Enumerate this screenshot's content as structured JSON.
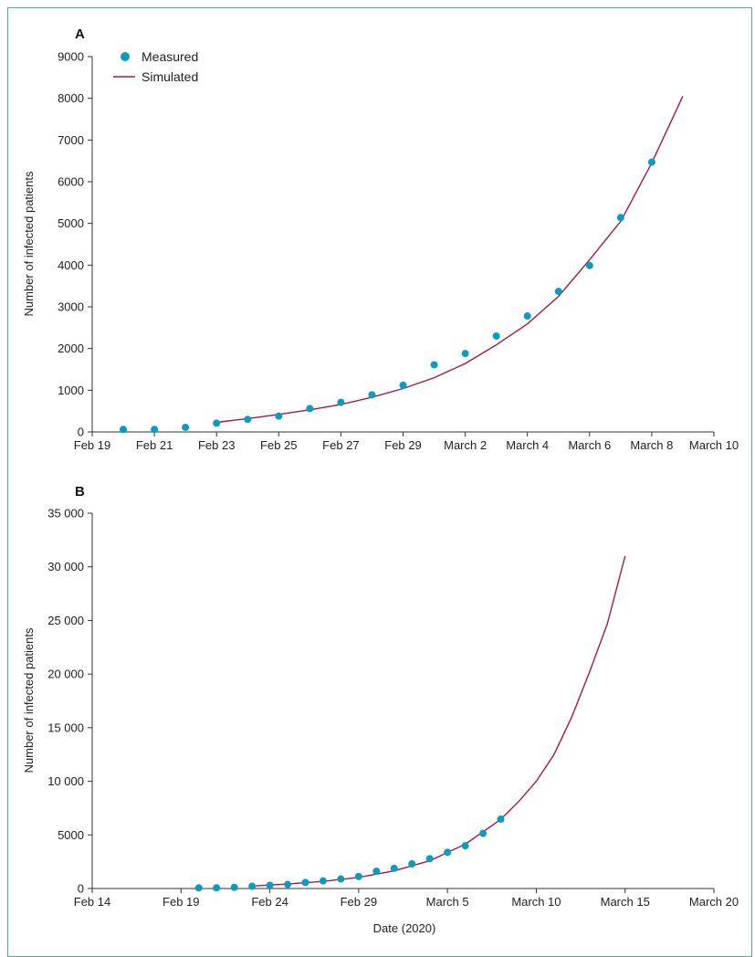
{
  "colors": {
    "measured": "#0a9cc0",
    "simulated": "#a8164b",
    "axis": "#333333",
    "frame": "#5aa79a"
  },
  "chart_data": [
    {
      "panel": "A",
      "type": "scatter",
      "xlabel": "",
      "ylabel": "Number of infected patients",
      "ylim": [
        0,
        9000
      ],
      "yticks": [
        0,
        1000,
        2000,
        3000,
        4000,
        5000,
        6000,
        7000,
        8000,
        9000
      ],
      "ytick_labels": [
        "0",
        "1000",
        "2000",
        "3000",
        "4000",
        "5000",
        "6000",
        "7000",
        "8000",
        "9000"
      ],
      "xlim": [
        "2020-02-19",
        "2020-03-10"
      ],
      "xticks": [
        "2020-02-19",
        "2020-02-21",
        "2020-02-23",
        "2020-02-25",
        "2020-02-27",
        "2020-02-29",
        "2020-03-02",
        "2020-03-04",
        "2020-03-06",
        "2020-03-08",
        "2020-03-10"
      ],
      "xtick_labels": [
        "Feb 19",
        "Feb 21",
        "Feb 23",
        "Feb 25",
        "Feb 27",
        "Feb 29",
        "March 2",
        "March 4",
        "March 6",
        "March 8",
        "March 10"
      ],
      "legend": {
        "position": "top-left",
        "entries": [
          "Measured",
          "Simulated"
        ]
      },
      "series": [
        {
          "name": "Measured",
          "kind": "points",
          "x": [
            "2020-02-20",
            "2020-02-21",
            "2020-02-22",
            "2020-02-23",
            "2020-02-24",
            "2020-02-25",
            "2020-02-26",
            "2020-02-27",
            "2020-02-28",
            "2020-02-29",
            "2020-03-01",
            "2020-03-02",
            "2020-03-03",
            "2020-03-04",
            "2020-03-05",
            "2020-03-06",
            "2020-03-07",
            "2020-03-08"
          ],
          "y": [
            60,
            60,
            110,
            210,
            300,
            380,
            560,
            710,
            890,
            1120,
            1610,
            1880,
            2300,
            2780,
            3370,
            3990,
            5140,
            6470
          ]
        },
        {
          "name": "Simulated",
          "kind": "line",
          "x": [
            "2020-02-23",
            "2020-02-24",
            "2020-02-25",
            "2020-02-26",
            "2020-02-27",
            "2020-02-28",
            "2020-02-29",
            "2020-03-01",
            "2020-03-02",
            "2020-03-03",
            "2020-03-04",
            "2020-03-05",
            "2020-03-06",
            "2020-03-07",
            "2020-03-08",
            "2020-03-09"
          ],
          "y": [
            230,
            320,
            420,
            530,
            660,
            830,
            1040,
            1300,
            1640,
            2090,
            2590,
            3250,
            4130,
            5050,
            6450,
            8050
          ]
        }
      ]
    },
    {
      "panel": "B",
      "type": "scatter",
      "xlabel": "Date (2020)",
      "ylabel": "Number of infected patients",
      "ylim": [
        0,
        35000
      ],
      "yticks": [
        0,
        5000,
        10000,
        15000,
        20000,
        25000,
        30000,
        35000
      ],
      "ytick_labels": [
        "0",
        "5000",
        "10 000",
        "15 000",
        "20 000",
        "25 000",
        "30 000",
        "35 000"
      ],
      "xlim": [
        "2020-02-14",
        "2020-03-20"
      ],
      "xticks": [
        "2020-02-14",
        "2020-02-19",
        "2020-02-24",
        "2020-02-29",
        "2020-03-05",
        "2020-03-10",
        "2020-03-15",
        "2020-03-20"
      ],
      "xtick_labels": [
        "Feb 14",
        "Feb 19",
        "Feb 24",
        "Feb 29",
        "March 5",
        "March 10",
        "March 15",
        "March 20"
      ],
      "series": [
        {
          "name": "Measured",
          "kind": "points",
          "x": [
            "2020-02-20",
            "2020-02-21",
            "2020-02-22",
            "2020-02-23",
            "2020-02-24",
            "2020-02-25",
            "2020-02-26",
            "2020-02-27",
            "2020-02-28",
            "2020-02-29",
            "2020-03-01",
            "2020-03-02",
            "2020-03-03",
            "2020-03-04",
            "2020-03-05",
            "2020-03-06",
            "2020-03-07",
            "2020-03-08"
          ],
          "y": [
            60,
            60,
            110,
            210,
            300,
            380,
            560,
            710,
            890,
            1120,
            1610,
            1880,
            2300,
            2780,
            3370,
            3990,
            5140,
            6470
          ]
        },
        {
          "name": "Simulated",
          "kind": "line",
          "x": [
            "2020-02-23",
            "2020-02-25",
            "2020-02-27",
            "2020-02-29",
            "2020-03-02",
            "2020-03-04",
            "2020-03-06",
            "2020-03-08",
            "2020-03-09",
            "2020-03-10",
            "2020-03-11",
            "2020-03-12",
            "2020-03-13",
            "2020-03-14",
            "2020-03-15"
          ],
          "y": [
            230,
            420,
            660,
            1040,
            1640,
            2590,
            4130,
            6450,
            8100,
            10000,
            12500,
            16000,
            20200,
            24700,
            31000
          ]
        }
      ]
    }
  ]
}
